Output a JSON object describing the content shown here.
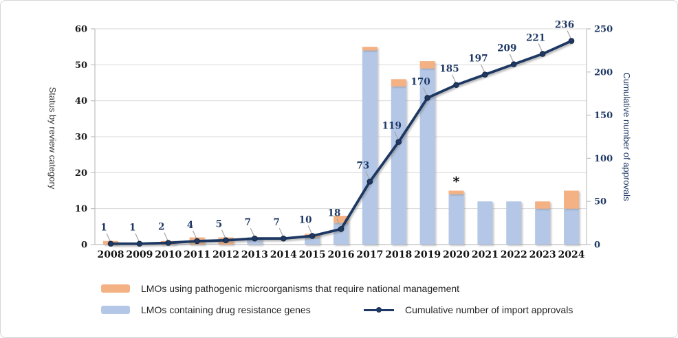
{
  "chart_data": {
    "type": "combo",
    "categories": [
      "2008",
      "2009",
      "2010",
      "2011",
      "2012",
      "2013",
      "2014",
      "2015",
      "2016",
      "2017",
      "2018",
      "2019",
      "2020",
      "2021",
      "2022",
      "2023",
      "2024"
    ],
    "series": [
      {
        "name": "LMOs using pathogenic microorganisms that require national management",
        "type": "bar",
        "stack": "top",
        "axis": "left",
        "color": "#F4B183",
        "values": [
          1,
          0,
          1,
          2,
          2,
          0,
          0,
          1,
          2,
          1,
          2,
          2,
          1,
          0,
          0,
          2,
          5
        ]
      },
      {
        "name": "LMOs containing drug resistance genes",
        "type": "bar",
        "stack": "bottom",
        "axis": "left",
        "color": "#B4C7E7",
        "values": [
          0,
          0,
          0,
          0,
          0,
          2,
          0,
          2,
          6,
          54,
          44,
          49,
          14,
          12,
          12,
          10,
          10
        ]
      },
      {
        "name": "Cumulative number of import approvals",
        "type": "line",
        "axis": "right",
        "color": "#1F3864",
        "values": [
          1,
          1,
          2,
          4,
          5,
          7,
          7,
          10,
          18,
          73,
          119,
          170,
          185,
          197,
          209,
          221,
          236
        ],
        "data_labels": [
          "1",
          "1",
          "2",
          "4",
          "5",
          "7",
          "7",
          "10",
          "18",
          "73",
          "119",
          "170",
          "185",
          "197",
          "209",
          "221",
          "236"
        ]
      }
    ],
    "left_axis": {
      "title": "Status by review category",
      "min": 0,
      "max": 60,
      "step": 10,
      "tick_labels": [
        "0",
        "10",
        "20",
        "30",
        "40",
        "50",
        "60"
      ],
      "color": "#1a1a1a"
    },
    "right_axis": {
      "title": "Cumulative number of approvals",
      "min": 0,
      "max": 250,
      "step": 50,
      "tick_labels": [
        "0",
        "50",
        "100",
        "150",
        "200",
        "250"
      ],
      "color": "#1F3864"
    },
    "annotations": [
      {
        "text": "*",
        "category": "2020",
        "position": "above-bar"
      }
    ],
    "grid": true,
    "legend_position": "bottom",
    "colors": {
      "gridline": "#d9d9d9",
      "axis_line": "#bfbfbf",
      "leader_line": "#a6a6a6",
      "year_label": "#111111",
      "annotation": "#000000"
    }
  },
  "legend": {
    "items": [
      {
        "label": "LMOs using pathogenic microorganisms that require national management",
        "swatch": "bar",
        "color": "#F4B183"
      },
      {
        "label": "LMOs containing drug resistance genes",
        "swatch": "bar",
        "color": "#B4C7E7"
      },
      {
        "label": "Cumulative number of import approvals",
        "swatch": "line",
        "color": "#1F3864"
      }
    ]
  }
}
